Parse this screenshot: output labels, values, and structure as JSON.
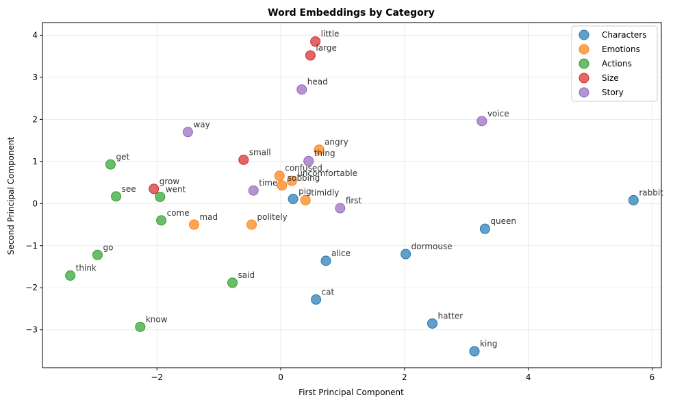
{
  "chart_data": {
    "type": "scatter",
    "title": "Word Embeddings by Category",
    "xlabel": "First Principal Component",
    "ylabel": "Second Principal Component",
    "xlim": [
      -3.85,
      6.15
    ],
    "ylim": [
      -3.9,
      4.3
    ],
    "xticks": [
      -2,
      0,
      2,
      4,
      6
    ],
    "yticks": [
      -3,
      -2,
      -1,
      0,
      1,
      2,
      3,
      4
    ],
    "grid": true,
    "legend_position": "top-right",
    "series": [
      {
        "name": "Characters",
        "color": "#1f77b4",
        "points": [
          {
            "label": "rabbit",
            "x": 5.7,
            "y": 0.08
          },
          {
            "label": "queen",
            "x": 3.3,
            "y": -0.6
          },
          {
            "label": "dormouse",
            "x": 2.02,
            "y": -1.2
          },
          {
            "label": "alice",
            "x": 0.73,
            "y": -1.36
          },
          {
            "label": "cat",
            "x": 0.57,
            "y": -2.28
          },
          {
            "label": "hatter",
            "x": 2.45,
            "y": -2.85
          },
          {
            "label": "king",
            "x": 3.13,
            "y": -3.51
          },
          {
            "label": "pig",
            "x": 0.2,
            "y": 0.11
          }
        ]
      },
      {
        "name": "Emotions",
        "color": "#ff7f0e",
        "points": [
          {
            "label": "angry",
            "x": 0.62,
            "y": 1.28
          },
          {
            "label": "confused",
            "x": -0.02,
            "y": 0.66
          },
          {
            "label": "uncomfortable",
            "x": 0.18,
            "y": 0.54
          },
          {
            "label": "sobbing",
            "x": 0.02,
            "y": 0.43
          },
          {
            "label": "timidly",
            "x": 0.4,
            "y": 0.08
          },
          {
            "label": "mad",
            "x": -1.4,
            "y": -0.5
          },
          {
            "label": "politely",
            "x": -0.47,
            "y": -0.5
          }
        ]
      },
      {
        "name": "Actions",
        "color": "#2ca02c",
        "points": [
          {
            "label": "get",
            "x": -2.75,
            "y": 0.93
          },
          {
            "label": "see",
            "x": -2.66,
            "y": 0.17
          },
          {
            "label": "went",
            "x": -1.95,
            "y": 0.16
          },
          {
            "label": "come",
            "x": -1.93,
            "y": -0.4
          },
          {
            "label": "go",
            "x": -2.96,
            "y": -1.22
          },
          {
            "label": "think",
            "x": -3.4,
            "y": -1.71
          },
          {
            "label": "said",
            "x": -0.78,
            "y": -1.88
          },
          {
            "label": "know",
            "x": -2.27,
            "y": -2.93
          }
        ]
      },
      {
        "name": "Size",
        "color": "#d62728",
        "points": [
          {
            "label": "little",
            "x": 0.56,
            "y": 3.85
          },
          {
            "label": "large",
            "x": 0.48,
            "y": 3.52
          },
          {
            "label": "small",
            "x": -0.6,
            "y": 1.04
          },
          {
            "label": "grow",
            "x": -2.05,
            "y": 0.35
          }
        ]
      },
      {
        "name": "Story",
        "color": "#9467bd",
        "points": [
          {
            "label": "head",
            "x": 0.34,
            "y": 2.71
          },
          {
            "label": "voice",
            "x": 3.25,
            "y": 1.96
          },
          {
            "label": "way",
            "x": -1.5,
            "y": 1.7
          },
          {
            "label": "thing",
            "x": 0.45,
            "y": 1.01
          },
          {
            "label": "time",
            "x": -0.44,
            "y": 0.31
          },
          {
            "label": "first",
            "x": 0.96,
            "y": -0.11
          }
        ]
      }
    ]
  }
}
